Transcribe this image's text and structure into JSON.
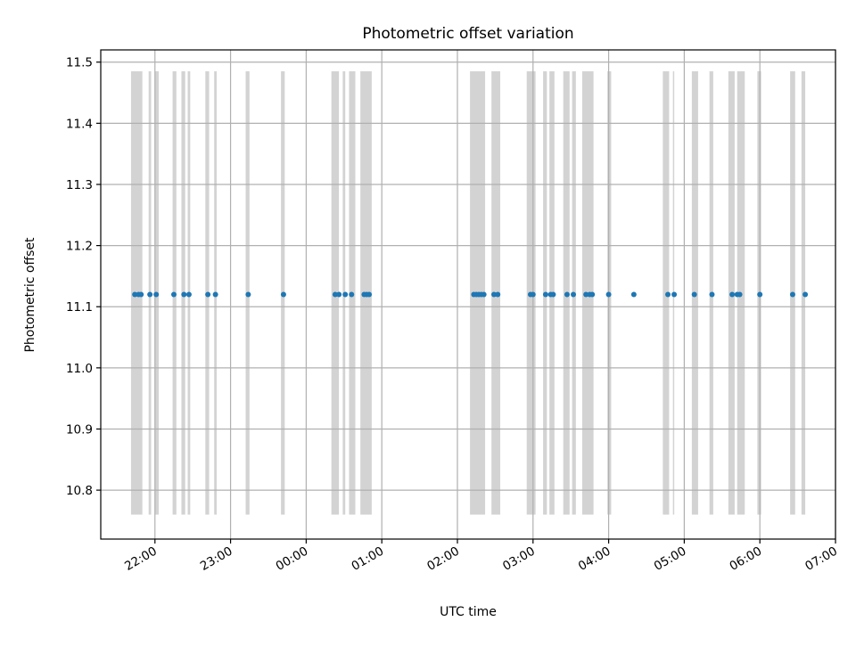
{
  "chart_data": {
    "type": "scatter",
    "title": "Photometric offset variation",
    "xlabel": "UTC time",
    "ylabel": "Photometric offset",
    "x_axis": "time",
    "xlim": [
      "21:17",
      "07:00"
    ],
    "xticks": [
      "22:00",
      "23:00",
      "00:00",
      "01:00",
      "02:00",
      "03:00",
      "04:00",
      "05:00",
      "06:00",
      "07:00"
    ],
    "ylim": [
      10.72,
      11.52
    ],
    "yticks": [
      "10.8",
      "10.9",
      "11.0",
      "11.1",
      "11.2",
      "11.3",
      "11.4",
      "11.5"
    ],
    "grid": true,
    "band_y_range": [
      10.76,
      11.485
    ],
    "bands": [
      [
        "21:41",
        "21:50"
      ],
      [
        "21:55",
        "21:57"
      ],
      [
        "22:00",
        "22:03"
      ],
      [
        "22:14",
        "22:17"
      ],
      [
        "22:21",
        "22:24"
      ],
      [
        "22:26",
        "22:28"
      ],
      [
        "22:40",
        "22:43"
      ],
      [
        "22:47",
        "22:49"
      ],
      [
        "23:12",
        "23:15"
      ],
      [
        "23:40",
        "23:43"
      ],
      [
        "00:20",
        "00:26"
      ],
      [
        "00:29",
        "00:31"
      ],
      [
        "00:34",
        "00:39"
      ],
      [
        "00:43",
        "00:52"
      ],
      [
        "02:10",
        "02:22"
      ],
      [
        "02:27",
        "02:34"
      ],
      [
        "02:55",
        "03:02"
      ],
      [
        "03:08",
        "03:11"
      ],
      [
        "03:13",
        "03:17"
      ],
      [
        "03:24",
        "03:29"
      ],
      [
        "03:31",
        "03:34"
      ],
      [
        "03:39",
        "03:48"
      ],
      [
        "03:59",
        "04:02"
      ],
      [
        "04:43",
        "04:48"
      ],
      [
        "04:51",
        "04:52"
      ],
      [
        "05:06",
        "05:11"
      ],
      [
        "05:20",
        "05:23"
      ],
      [
        "05:35",
        "05:40"
      ],
      [
        "05:42",
        "05:48"
      ],
      [
        "05:58",
        "06:01"
      ],
      [
        "06:24",
        "06:28"
      ],
      [
        "06:33",
        "06:36"
      ]
    ],
    "series": [
      {
        "marker_color": "#1f77b4",
        "x": [
          "21:44",
          "21:47",
          "21:49",
          "21:56",
          "22:01",
          "22:15",
          "22:23",
          "22:27",
          "22:42",
          "22:48",
          "23:14",
          "23:42",
          "00:23",
          "00:26",
          "00:31",
          "00:36",
          "00:46",
          "00:48",
          "00:50",
          "02:13",
          "02:15",
          "02:17",
          "02:19",
          "02:21",
          "02:29",
          "02:32",
          "02:58",
          "03:00",
          "03:10",
          "03:14",
          "03:16",
          "03:27",
          "03:32",
          "03:42",
          "03:45",
          "03:47",
          "04:00",
          "04:20",
          "04:47",
          "04:52",
          "05:08",
          "05:22",
          "05:38",
          "05:42",
          "05:44",
          "06:00",
          "06:26",
          "06:36"
        ],
        "y": [
          11.12,
          11.12,
          11.12,
          11.12,
          11.12,
          11.12,
          11.12,
          11.12,
          11.12,
          11.12,
          11.12,
          11.12,
          11.12,
          11.12,
          11.12,
          11.12,
          11.12,
          11.12,
          11.12,
          11.12,
          11.12,
          11.12,
          11.12,
          11.12,
          11.12,
          11.12,
          11.12,
          11.12,
          11.12,
          11.12,
          11.12,
          11.12,
          11.12,
          11.12,
          11.12,
          11.12,
          11.12,
          11.12,
          11.12,
          11.12,
          11.12,
          11.12,
          11.12,
          11.12,
          11.12,
          11.12,
          11.12,
          11.12
        ]
      }
    ],
    "colors": {
      "band": "#d3d3d3",
      "grid": "#b0b0b0",
      "axis": "#000000",
      "marker": "#1f77b4"
    }
  }
}
